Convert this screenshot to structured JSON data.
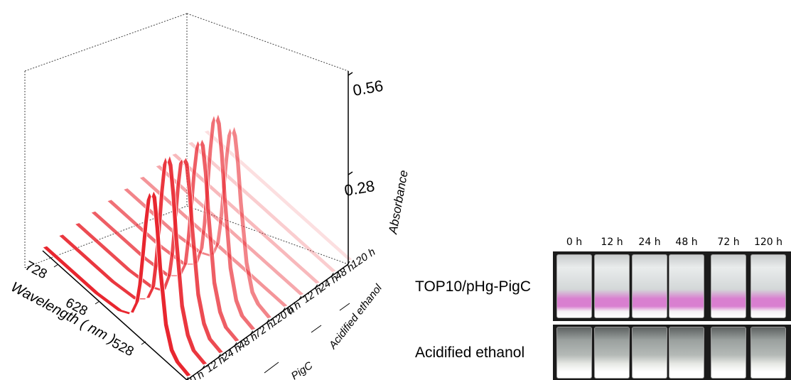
{
  "chart_data": {
    "type": "3d-waterfall-line",
    "title": "",
    "xlabel": "Wavelength ( nm )",
    "xticks": [
      "528",
      "628",
      "728"
    ],
    "zlabel": "Absorbance",
    "zticks": [
      "0.28",
      "0.56"
    ],
    "zlim": [
      0,
      0.56
    ],
    "group_labels": [
      "PigC",
      "Acidified ethanol"
    ],
    "wavelength": [
      480,
      500,
      510,
      520,
      530,
      535,
      540,
      545,
      550,
      555,
      560,
      565,
      570,
      580,
      600,
      640,
      680,
      730
    ],
    "series": [
      {
        "group": "PigC",
        "name": "0 h",
        "values": [
          0.01,
          0.02,
          0.04,
          0.1,
          0.25,
          0.36,
          0.44,
          0.45,
          0.42,
          0.34,
          0.24,
          0.15,
          0.09,
          0.04,
          0.02,
          0.01,
          0.01,
          0.01
        ]
      },
      {
        "group": "PigC",
        "name": "12 h",
        "values": [
          0.01,
          0.02,
          0.05,
          0.12,
          0.3,
          0.42,
          0.5,
          0.52,
          0.49,
          0.4,
          0.28,
          0.18,
          0.1,
          0.05,
          0.02,
          0.01,
          0.01,
          0.01
        ]
      },
      {
        "group": "PigC",
        "name": "24 h",
        "values": [
          0.01,
          0.02,
          0.05,
          0.12,
          0.29,
          0.4,
          0.47,
          0.48,
          0.46,
          0.38,
          0.27,
          0.17,
          0.1,
          0.04,
          0.02,
          0.01,
          0.01,
          0.01
        ]
      },
      {
        "group": "PigC",
        "name": "48 h",
        "values": [
          0.01,
          0.02,
          0.05,
          0.12,
          0.3,
          0.42,
          0.49,
          0.5,
          0.47,
          0.39,
          0.28,
          0.18,
          0.1,
          0.05,
          0.02,
          0.01,
          0.01,
          0.01
        ]
      },
      {
        "group": "PigC",
        "name": "72 h",
        "values": [
          0.01,
          0.02,
          0.05,
          0.13,
          0.32,
          0.44,
          0.52,
          0.54,
          0.51,
          0.42,
          0.3,
          0.19,
          0.11,
          0.05,
          0.02,
          0.01,
          0.01,
          0.01
        ]
      },
      {
        "group": "PigC",
        "name": "120 h",
        "values": [
          0.01,
          0.02,
          0.04,
          0.11,
          0.27,
          0.38,
          0.45,
          0.47,
          0.44,
          0.36,
          0.26,
          0.16,
          0.09,
          0.04,
          0.02,
          0.01,
          0.01,
          0.01
        ]
      },
      {
        "group": "Acidified ethanol",
        "name": "0 h",
        "values": [
          0.01,
          0.01,
          0.01,
          0.01,
          0.01,
          0.01,
          0.01,
          0.01,
          0.01,
          0.01,
          0.01,
          0.01,
          0.01,
          0.01,
          0.01,
          0.01,
          0.01,
          0.01
        ]
      },
      {
        "group": "Acidified ethanol",
        "name": "12 h",
        "values": [
          0.01,
          0.01,
          0.01,
          0.01,
          0.01,
          0.01,
          0.01,
          0.01,
          0.01,
          0.01,
          0.01,
          0.01,
          0.01,
          0.01,
          0.01,
          0.01,
          0.01,
          0.01
        ]
      },
      {
        "group": "Acidified ethanol",
        "name": "24 h",
        "values": [
          0.01,
          0.01,
          0.01,
          0.01,
          0.01,
          0.01,
          0.01,
          0.01,
          0.01,
          0.01,
          0.01,
          0.01,
          0.01,
          0.01,
          0.01,
          0.01,
          0.01,
          0.01
        ]
      },
      {
        "group": "Acidified ethanol",
        "name": "48 h",
        "values": [
          0.01,
          0.01,
          0.01,
          0.01,
          0.01,
          0.01,
          0.01,
          0.01,
          0.01,
          0.01,
          0.01,
          0.01,
          0.01,
          0.01,
          0.01,
          0.01,
          0.01,
          0.01
        ]
      },
      {
        "group": "Acidified ethanol",
        "name": "120 h",
        "values": [
          0.01,
          0.01,
          0.01,
          0.01,
          0.01,
          0.01,
          0.01,
          0.01,
          0.01,
          0.01,
          0.01,
          0.01,
          0.01,
          0.01,
          0.01,
          0.01,
          0.01,
          0.01
        ]
      }
    ],
    "y_tick_labels": [
      "0 h",
      "12 h",
      "24 h",
      "48 h",
      "72 h",
      "120 h",
      "0 h",
      "12 h",
      "24 h",
      "48 h",
      "120 h"
    ],
    "series_color": "#e8262f"
  },
  "photo": {
    "time_labels": [
      "0 h",
      "12 h",
      "24 h",
      "48 h",
      "72 h",
      "120 h"
    ],
    "rows": [
      {
        "label": "TOP10/pHg-PigC",
        "liquid_color": "#d97fd0"
      },
      {
        "label": "Acidified ethanol",
        "liquid_color": "#e6e8e4"
      }
    ]
  }
}
